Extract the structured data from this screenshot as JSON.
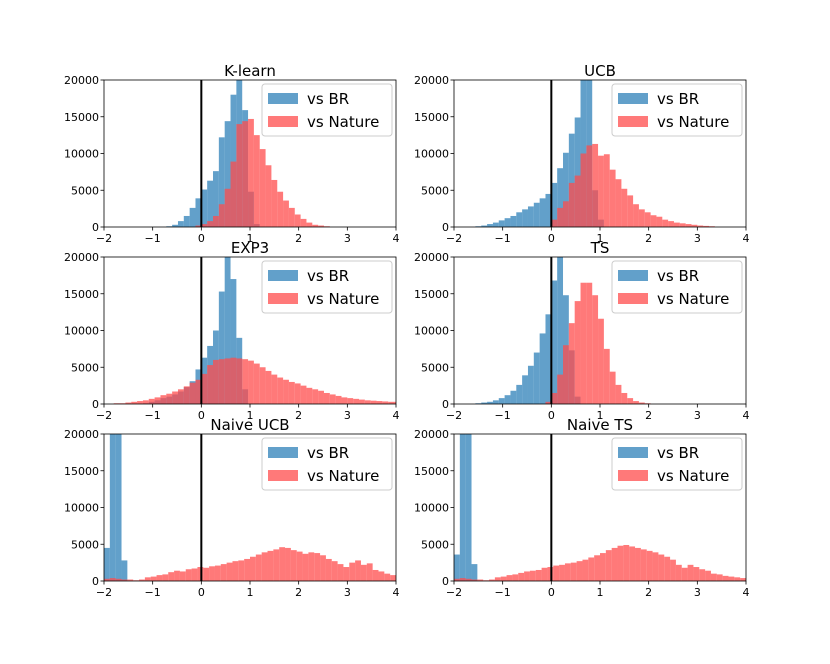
{
  "chart_data": [
    {
      "type": "bar",
      "title": "K-learn",
      "xlim": [
        -2,
        4
      ],
      "ylim": [
        0,
        20000
      ],
      "xticks": [
        -2,
        -1,
        0,
        1,
        2,
        3,
        4
      ],
      "yticks": [
        0,
        5000,
        10000,
        15000,
        20000
      ],
      "vline_x": 0,
      "bin_width": 0.12,
      "legend_position": "top-right",
      "series": [
        {
          "name": "vs BR",
          "color": "#1f77b4",
          "bins_start": -0.72,
          "values": [
            100,
            300,
            800,
            1500,
            2600,
            3900,
            5100,
            6300,
            7600,
            12200,
            14400,
            18000,
            20000,
            15900,
            4800,
            400
          ]
        },
        {
          "name": "vs Nature",
          "color": "#ff4c4c",
          "bins_start": -0.12,
          "values": [
            200,
            400,
            800,
            1500,
            3100,
            5200,
            8900,
            14000,
            14400,
            14700,
            12500,
            10600,
            8400,
            6400,
            4800,
            3600,
            2600,
            1700,
            1100,
            600,
            300,
            200,
            100
          ]
        }
      ]
    },
    {
      "type": "bar",
      "title": "UCB",
      "xlim": [
        -2,
        4
      ],
      "ylim": [
        0,
        20000
      ],
      "xticks": [
        -2,
        -1,
        0,
        1,
        2,
        3,
        4
      ],
      "yticks": [
        0,
        5000,
        10000,
        15000,
        20000
      ],
      "vline_x": 0,
      "bin_width": 0.12,
      "legend_position": "top-right",
      "series": [
        {
          "name": "vs BR",
          "color": "#1f77b4",
          "bins_start": -1.56,
          "values": [
            100,
            200,
            400,
            600,
            900,
            1200,
            1500,
            2000,
            2400,
            2800,
            3300,
            3900,
            4500,
            6000,
            8000,
            10100,
            12700,
            14900,
            20000,
            20000,
            5000,
            1000
          ]
        },
        {
          "name": "vs Nature",
          "color": "#ff4c4c",
          "bins_start": 0,
          "values": [
            1000,
            2600,
            3500,
            6000,
            7000,
            10000,
            11100,
            11300,
            9700,
            9900,
            7800,
            6500,
            5200,
            4300,
            3100,
            2400,
            2000,
            1600,
            1400,
            1000,
            800,
            600,
            500,
            400,
            300,
            200,
            150,
            100
          ]
        }
      ]
    },
    {
      "type": "bar",
      "title": "EXP3",
      "xlim": [
        -2,
        4
      ],
      "ylim": [
        0,
        20000
      ],
      "xticks": [
        -2,
        -1,
        0,
        1,
        2,
        3,
        4
      ],
      "yticks": [
        0,
        5000,
        10000,
        15000,
        20000
      ],
      "vline_x": 0,
      "bin_width": 0.12,
      "legend_position": "top-right",
      "series": [
        {
          "name": "vs BR",
          "color": "#1f77b4",
          "bins_start": -1.2,
          "values": [
            100,
            300,
            500,
            800,
            1000,
            1300,
            1700,
            2300,
            3100,
            4700,
            6300,
            7900,
            10000,
            15300,
            20000,
            17000,
            9000,
            2000
          ]
        },
        {
          "name": "vs Nature",
          "color": "#ff4c4c",
          "bins_start": -1.8,
          "values": [
            100,
            100,
            200,
            300,
            400,
            500,
            700,
            900,
            1200,
            1400,
            1700,
            2000,
            2400,
            2900,
            3300,
            4100,
            5300,
            6000,
            6100,
            6200,
            6300,
            6200,
            6100,
            5900,
            5500,
            5000,
            4500,
            4000,
            3600,
            3300,
            3000,
            2800,
            2500,
            2200,
            2000,
            1800,
            1500,
            1300,
            1100,
            900,
            800,
            700,
            600,
            500,
            450,
            400,
            350,
            300,
            300
          ]
        }
      ]
    },
    {
      "type": "bar",
      "title": "TS",
      "xlim": [
        -2,
        4
      ],
      "ylim": [
        0,
        20000
      ],
      "xticks": [
        -2,
        -1,
        0,
        1,
        2,
        3,
        4
      ],
      "yticks": [
        0,
        5000,
        10000,
        15000,
        20000
      ],
      "vline_x": 0,
      "bin_width": 0.12,
      "legend_position": "top-right",
      "series": [
        {
          "name": "vs BR",
          "color": "#1f77b4",
          "bins_start": -1.56,
          "values": [
            100,
            200,
            300,
            500,
            800,
            1200,
            1800,
            2600,
            3900,
            5200,
            7000,
            9600,
            12200,
            16800,
            20000,
            14800,
            7300,
            1000
          ]
        },
        {
          "name": "vs Nature",
          "color": "#ff4c4c",
          "bins_start": -0.12,
          "values": [
            300,
            1500,
            4000,
            8000,
            11000,
            14000,
            16500,
            16500,
            14800,
            11600,
            7500,
            4400,
            2600,
            1500,
            800,
            400,
            200,
            100
          ]
        }
      ]
    },
    {
      "type": "bar",
      "title": "Naive UCB",
      "xlim": [
        -2,
        4
      ],
      "ylim": [
        0,
        20000
      ],
      "xticks": [
        -2,
        -1,
        0,
        1,
        2,
        3,
        4
      ],
      "yticks": [
        0,
        5000,
        10000,
        15000,
        20000
      ],
      "vline_x": 0,
      "bin_width": 0.12,
      "legend_position": "top-right",
      "series": [
        {
          "name": "vs BR",
          "color": "#1f77b4",
          "bins_start": -2.0,
          "values": [
            4500,
            20000,
            20000,
            2800
          ]
        },
        {
          "name": "vs Nature",
          "color": "#ff4c4c",
          "bins_start": -2.0,
          "values": [
            300,
            400,
            300,
            200,
            200,
            100,
            200,
            500,
            600,
            800,
            900,
            1200,
            1400,
            1300,
            1600,
            1700,
            1900,
            1800,
            2000,
            2100,
            2300,
            2500,
            2700,
            2800,
            3000,
            3300,
            3600,
            3900,
            4100,
            4300,
            4600,
            4500,
            4200,
            4000,
            3700,
            3900,
            3800,
            3500,
            3000,
            2700,
            2300,
            1900,
            2500,
            2800,
            2200,
            2400,
            1500,
            1300,
            1000,
            800
          ]
        }
      ]
    },
    {
      "type": "bar",
      "title": "Naive TS",
      "xlim": [
        -2,
        4
      ],
      "ylim": [
        0,
        20000
      ],
      "xticks": [
        -2,
        -1,
        0,
        1,
        2,
        3,
        4
      ],
      "yticks": [
        0,
        5000,
        10000,
        15000,
        20000
      ],
      "vline_x": 0,
      "bin_width": 0.12,
      "legend_position": "top-right",
      "series": [
        {
          "name": "vs BR",
          "color": "#1f77b4",
          "bins_start": -2.0,
          "values": [
            3600,
            20000,
            20000,
            2300
          ]
        },
        {
          "name": "vs Nature",
          "color": "#ff4c4c",
          "bins_start": -2.0,
          "values": [
            300,
            400,
            300,
            200,
            200,
            100,
            200,
            500,
            600,
            800,
            900,
            1100,
            1300,
            1400,
            1500,
            1800,
            1900,
            2100,
            2200,
            2400,
            2500,
            2700,
            2900,
            3200,
            3500,
            3800,
            4200,
            4500,
            4800,
            4900,
            4700,
            4500,
            4300,
            4100,
            3900,
            3600,
            3300,
            2900,
            2200,
            1800,
            2200,
            1900,
            1600,
            1400,
            1000,
            900,
            700,
            600,
            500,
            400
          ]
        }
      ]
    }
  ]
}
